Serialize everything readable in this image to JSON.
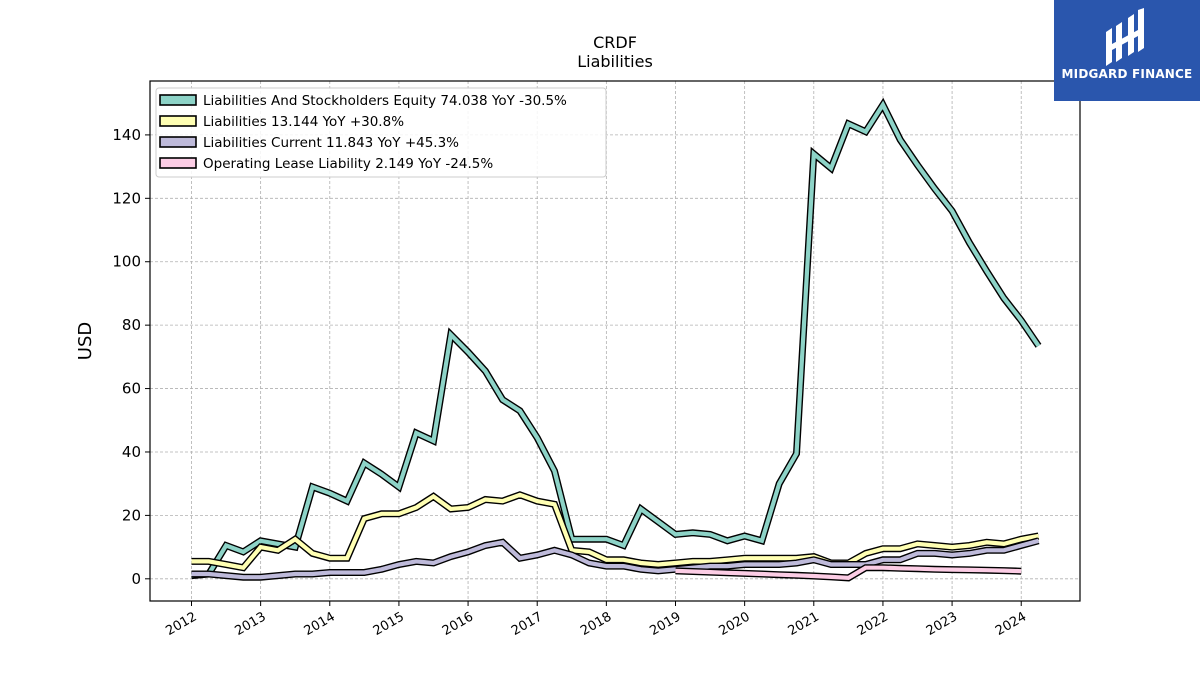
{
  "logo": {
    "text": "MIDGARD FINANCE",
    "color": "#2a56ad"
  },
  "chart_data": {
    "type": "line",
    "title": "CRDF",
    "subtitle": "Liabilities",
    "xlabel": "",
    "ylabel": "USD",
    "x_ticks": [
      "2012",
      "2013",
      "2014",
      "2015",
      "2016",
      "2017",
      "2018",
      "2019",
      "2020",
      "2021",
      "2022",
      "2023",
      "2024"
    ],
    "y_ticks": [
      0,
      20,
      40,
      60,
      80,
      100,
      120,
      140
    ],
    "xlim": [
      2011.4,
      2024.85
    ],
    "ylim": [
      -7,
      157
    ],
    "grid": true,
    "legend_position": "top-left",
    "series": [
      {
        "name": "Liabilities And Stockholders Equity  74.038 YoY -30.5%",
        "color": "#8dd3c7",
        "points": [
          [
            2012.0,
            1
          ],
          [
            2012.25,
            1.5
          ],
          [
            2012.5,
            10.5
          ],
          [
            2012.75,
            8.5
          ],
          [
            2013.0,
            12
          ],
          [
            2013.25,
            11
          ],
          [
            2013.5,
            10
          ],
          [
            2013.75,
            29
          ],
          [
            2014.0,
            27
          ],
          [
            2014.25,
            24.5
          ],
          [
            2014.5,
            36.5
          ],
          [
            2014.75,
            33
          ],
          [
            2015.0,
            29
          ],
          [
            2015.25,
            46
          ],
          [
            2015.5,
            43.5
          ],
          [
            2015.75,
            77
          ],
          [
            2016.0,
            71.5
          ],
          [
            2016.25,
            65.5
          ],
          [
            2016.5,
            56.5
          ],
          [
            2016.75,
            53
          ],
          [
            2017.0,
            44.5
          ],
          [
            2017.25,
            34
          ],
          [
            2017.5,
            12.5
          ],
          [
            2017.75,
            12.5
          ],
          [
            2018.0,
            12.5
          ],
          [
            2018.25,
            10.5
          ],
          [
            2018.5,
            22
          ],
          [
            2018.75,
            18
          ],
          [
            2019.0,
            14
          ],
          [
            2019.25,
            14.5
          ],
          [
            2019.5,
            14
          ],
          [
            2019.75,
            12
          ],
          [
            2020.0,
            13.5
          ],
          [
            2020.25,
            12
          ],
          [
            2020.5,
            30
          ],
          [
            2020.75,
            39.5
          ],
          [
            2021.0,
            134
          ],
          [
            2021.25,
            129.5
          ],
          [
            2021.5,
            143.5
          ],
          [
            2021.75,
            141
          ],
          [
            2022.0,
            149.5
          ],
          [
            2022.25,
            138.5
          ],
          [
            2022.5,
            130.5
          ],
          [
            2022.75,
            123
          ],
          [
            2023.0,
            116
          ],
          [
            2023.25,
            106
          ],
          [
            2023.5,
            97
          ],
          [
            2023.75,
            88.5
          ],
          [
            2024.0,
            81.5
          ],
          [
            2024.25,
            73.5
          ]
        ]
      },
      {
        "name": "Liabilities  13.144 YoY +30.8%",
        "color": "#ffffb3",
        "points": [
          [
            2012.0,
            5.5
          ],
          [
            2012.25,
            5.5
          ],
          [
            2012.5,
            4.5
          ],
          [
            2012.75,
            3.5
          ],
          [
            2013.0,
            10
          ],
          [
            2013.25,
            9
          ],
          [
            2013.5,
            12.5
          ],
          [
            2013.75,
            8
          ],
          [
            2014.0,
            6.5
          ],
          [
            2014.25,
            6.5
          ],
          [
            2014.5,
            19
          ],
          [
            2014.75,
            20.5
          ],
          [
            2015.0,
            20.5
          ],
          [
            2015.25,
            22.5
          ],
          [
            2015.5,
            26
          ],
          [
            2015.75,
            22
          ],
          [
            2016.0,
            22.5
          ],
          [
            2016.25,
            25
          ],
          [
            2016.5,
            24.5
          ],
          [
            2016.75,
            26.5
          ],
          [
            2017.0,
            24.5
          ],
          [
            2017.25,
            23.5
          ],
          [
            2017.5,
            9
          ],
          [
            2017.75,
            8.5
          ],
          [
            2018.0,
            6
          ],
          [
            2018.25,
            6
          ],
          [
            2018.5,
            5
          ],
          [
            2018.75,
            4.5
          ],
          [
            2019.0,
            5
          ],
          [
            2019.25,
            5.5
          ],
          [
            2019.5,
            5.5
          ],
          [
            2019.75,
            6
          ],
          [
            2020.0,
            6.5
          ],
          [
            2020.25,
            6.5
          ],
          [
            2020.5,
            6.5
          ],
          [
            2020.75,
            6.5
          ],
          [
            2021.0,
            7
          ],
          [
            2021.25,
            5
          ],
          [
            2021.5,
            5
          ],
          [
            2021.75,
            8
          ],
          [
            2022.0,
            9.5
          ],
          [
            2022.25,
            9.5
          ],
          [
            2022.5,
            11
          ],
          [
            2022.75,
            10.5
          ],
          [
            2023.0,
            10
          ],
          [
            2023.25,
            10.5
          ],
          [
            2023.5,
            11.5
          ],
          [
            2023.75,
            11
          ],
          [
            2024.0,
            12.5
          ],
          [
            2024.25,
            13.5
          ]
        ]
      },
      {
        "name": "Liabilities Current  11.843 YoY +45.3%",
        "color": "#bebada",
        "points": [
          [
            2012.0,
            1.5
          ],
          [
            2012.25,
            1.5
          ],
          [
            2012.5,
            1
          ],
          [
            2012.75,
            0.5
          ],
          [
            2013.0,
            0.5
          ],
          [
            2013.25,
            1
          ],
          [
            2013.5,
            1.5
          ],
          [
            2013.75,
            1.5
          ],
          [
            2014.0,
            2
          ],
          [
            2014.25,
            2
          ],
          [
            2014.5,
            2
          ],
          [
            2014.75,
            3
          ],
          [
            2015.0,
            4.5
          ],
          [
            2015.25,
            5.5
          ],
          [
            2015.5,
            5
          ],
          [
            2015.75,
            7
          ],
          [
            2016.0,
            8.5
          ],
          [
            2016.25,
            10.5
          ],
          [
            2016.5,
            11.5
          ],
          [
            2016.75,
            6.5
          ],
          [
            2017.0,
            7.5
          ],
          [
            2017.25,
            9
          ],
          [
            2017.5,
            7.5
          ],
          [
            2017.75,
            5
          ],
          [
            2018.0,
            4
          ],
          [
            2018.25,
            4
          ],
          [
            2018.5,
            3
          ],
          [
            2018.75,
            2.5
          ],
          [
            2019.0,
            3
          ],
          [
            2019.25,
            3.5
          ],
          [
            2019.5,
            4
          ],
          [
            2019.75,
            4
          ],
          [
            2020.0,
            4.5
          ],
          [
            2020.25,
            4.5
          ],
          [
            2020.5,
            4.5
          ],
          [
            2020.75,
            5
          ],
          [
            2021.0,
            6
          ],
          [
            2021.25,
            4.5
          ],
          [
            2021.5,
            4.5
          ],
          [
            2021.75,
            4.5
          ],
          [
            2022.0,
            6
          ],
          [
            2022.25,
            6
          ],
          [
            2022.5,
            8
          ],
          [
            2022.75,
            8
          ],
          [
            2023.0,
            7.5
          ],
          [
            2023.25,
            8
          ],
          [
            2023.5,
            9
          ],
          [
            2023.75,
            9
          ],
          [
            2024.0,
            10.5
          ],
          [
            2024.25,
            12
          ]
        ]
      },
      {
        "name": "Operating Lease Liability  2.149 YoY -24.5%",
        "color": "#fccde5",
        "points": [
          [
            2019.0,
            2.5
          ],
          [
            2019.25,
            2.3
          ],
          [
            2019.5,
            2.1
          ],
          [
            2019.75,
            1.9
          ],
          [
            2020.0,
            1.7
          ],
          [
            2020.25,
            1.5
          ],
          [
            2020.5,
            1.3
          ],
          [
            2020.75,
            1.1
          ],
          [
            2021.0,
            0.9
          ],
          [
            2021.25,
            0.6
          ],
          [
            2021.5,
            0.3
          ],
          [
            2021.75,
            3.5
          ],
          [
            2022.0,
            3.5
          ],
          [
            2022.25,
            3.3
          ],
          [
            2022.5,
            3.2
          ],
          [
            2022.75,
            3
          ],
          [
            2023.0,
            2.9
          ],
          [
            2023.25,
            2.8
          ],
          [
            2023.5,
            2.7
          ],
          [
            2023.75,
            2.6
          ],
          [
            2024.0,
            2.4
          ]
        ]
      }
    ]
  }
}
